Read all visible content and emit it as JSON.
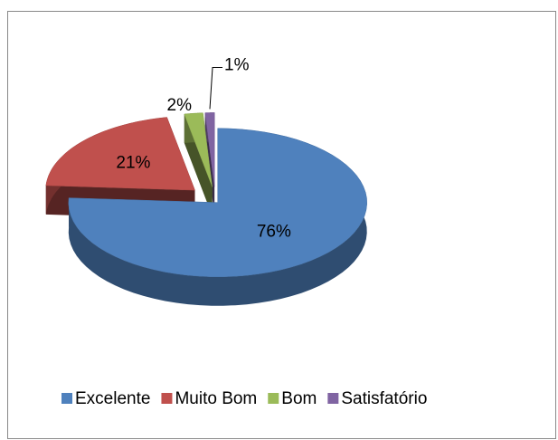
{
  "chart_data": {
    "type": "pie3d",
    "categories": [
      "Excelente",
      "Muito Bom",
      "Bom",
      "Satisfatório"
    ],
    "values": [
      76,
      21,
      2,
      1
    ],
    "value_labels": [
      "76%",
      "21%",
      "2%",
      "1%"
    ],
    "colors": [
      "#4f81bd",
      "#c0504d",
      "#9bbb59",
      "#8064a2"
    ],
    "legend": "bottom"
  }
}
